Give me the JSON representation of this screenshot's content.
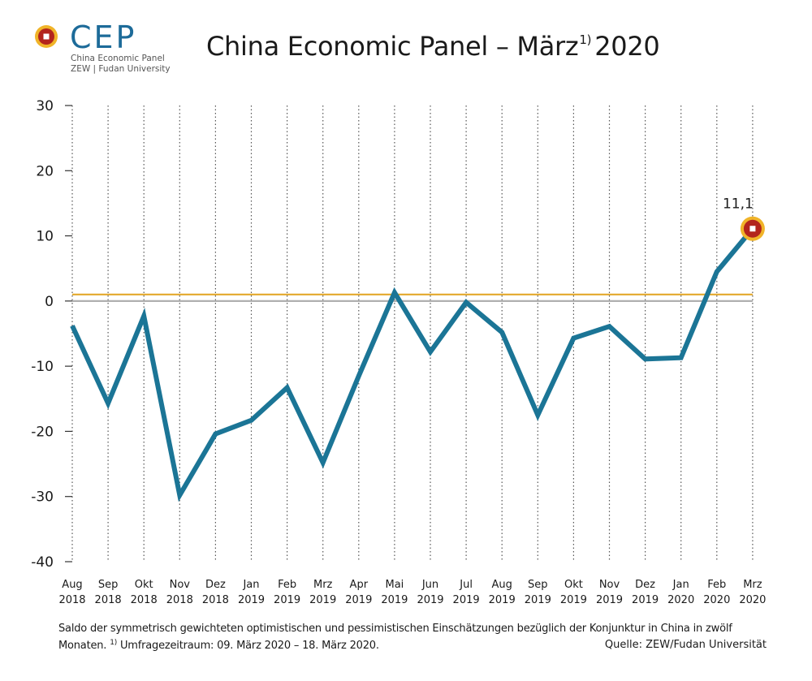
{
  "logo": {
    "wordmark": "CEP",
    "line1": "China Economic Panel",
    "line2": "ZEW | Fudan University"
  },
  "title": {
    "main": "China Economic Panel – März",
    "sup": "1)",
    "year": "2020"
  },
  "chart_data": {
    "type": "line",
    "title": "China Economic Panel – März 1) 2020",
    "xlabel": "",
    "ylabel": "",
    "ylim": [
      -40,
      30
    ],
    "yticks": [
      30,
      20,
      10,
      0,
      -10,
      -20,
      -30,
      -40
    ],
    "ytick_labels": [
      "30",
      "20",
      "10",
      "0",
      "-10",
      "-20",
      "-30",
      "-40"
    ],
    "grid": "vertical dotted",
    "categories": [
      [
        "Aug",
        "2018"
      ],
      [
        "Sep",
        "2018"
      ],
      [
        "Okt",
        "2018"
      ],
      [
        "Nov",
        "2018"
      ],
      [
        "Dez",
        "2018"
      ],
      [
        "Jan",
        "2019"
      ],
      [
        "Feb",
        "2019"
      ],
      [
        "Mrz",
        "2019"
      ],
      [
        "Apr",
        "2019"
      ],
      [
        "Mai",
        "2019"
      ],
      [
        "Jun",
        "2019"
      ],
      [
        "Jul",
        "2019"
      ],
      [
        "Aug",
        "2019"
      ],
      [
        "Sep",
        "2019"
      ],
      [
        "Okt",
        "2019"
      ],
      [
        "Nov",
        "2019"
      ],
      [
        "Dez",
        "2019"
      ],
      [
        "Jan",
        "2020"
      ],
      [
        "Feb",
        "2020"
      ],
      [
        "Mrz",
        "2020"
      ]
    ],
    "series": [
      {
        "color": "#1b7596",
        "values": [
          -3.8,
          -15.7,
          -2.3,
          -29.8,
          -20.4,
          -18.3,
          -13.3,
          -24.8,
          -11.5,
          1.3,
          -7.8,
          -0.2,
          -4.8,
          -17.5,
          -5.7,
          -3.9,
          -8.9,
          -8.7,
          4.5,
          11.1
        ]
      }
    ],
    "reference_lines": [
      {
        "value": 1.0,
        "color": "#e3a82b"
      },
      {
        "value": 0,
        "color": "#b0b0b0"
      }
    ],
    "annotation": {
      "index": 19,
      "label": "11,1"
    }
  },
  "footnote": {
    "line1": "Saldo der symmetrisch gewichteten optimistischen und pessimistischen Einschätzungen bezüglich der Konjunktur in China in zwölf",
    "line2_a": "Monaten.",
    "line2_sup": "1)",
    "line2_b": "Umfragezeitraum: 09. März 2020 – 18. März 2020.",
    "source": "Quelle: ZEW/Fudan Universität"
  },
  "colors": {
    "line": "#1b7596",
    "reference": "#e3a82b",
    "zero": "#b0b0b0",
    "marker_outer": "#f0b429",
    "marker_inner": "#b3241c"
  }
}
